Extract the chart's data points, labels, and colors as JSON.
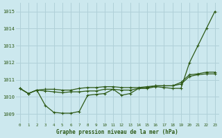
{
  "xlabel": "Graphe pression niveau de la mer (hPa)",
  "ylim": [
    1008.5,
    1015.5
  ],
  "xlim": [
    -0.5,
    23.5
  ],
  "yticks": [
    1009,
    1010,
    1011,
    1012,
    1013,
    1014,
    1015
  ],
  "xticks": [
    0,
    1,
    2,
    3,
    4,
    5,
    6,
    7,
    8,
    9,
    10,
    11,
    12,
    13,
    14,
    15,
    16,
    17,
    18,
    19,
    20,
    21,
    22,
    23
  ],
  "bg_color": "#cce8ee",
  "grid_color": "#b0d0d8",
  "line_color": "#2d5916",
  "series1": [
    1010.5,
    1010.2,
    1010.4,
    1009.5,
    1009.1,
    1009.05,
    1009.05,
    1009.15,
    1010.1,
    1010.15,
    1010.2,
    1010.45,
    1010.1,
    1010.2,
    1010.5,
    1010.5,
    1010.6,
    1010.55,
    1010.5,
    1010.5,
    1012.0,
    1013.0,
    1014.0,
    1015.0
  ],
  "series2": [
    1010.5,
    1010.2,
    1010.4,
    1010.35,
    1010.3,
    1010.25,
    1010.3,
    1010.3,
    1010.35,
    1010.35,
    1010.45,
    1010.45,
    1010.4,
    1010.4,
    1010.5,
    1010.55,
    1010.65,
    1010.65,
    1010.65,
    1010.75,
    1011.2,
    1011.3,
    1011.35,
    1011.35
  ],
  "series3": [
    1010.5,
    1010.2,
    1010.4,
    1010.45,
    1010.45,
    1010.4,
    1010.4,
    1010.5,
    1010.55,
    1010.55,
    1010.6,
    1010.6,
    1010.55,
    1010.55,
    1010.55,
    1010.6,
    1010.65,
    1010.65,
    1010.65,
    1010.85,
    1011.3,
    1011.35,
    1011.45,
    1011.45
  ]
}
